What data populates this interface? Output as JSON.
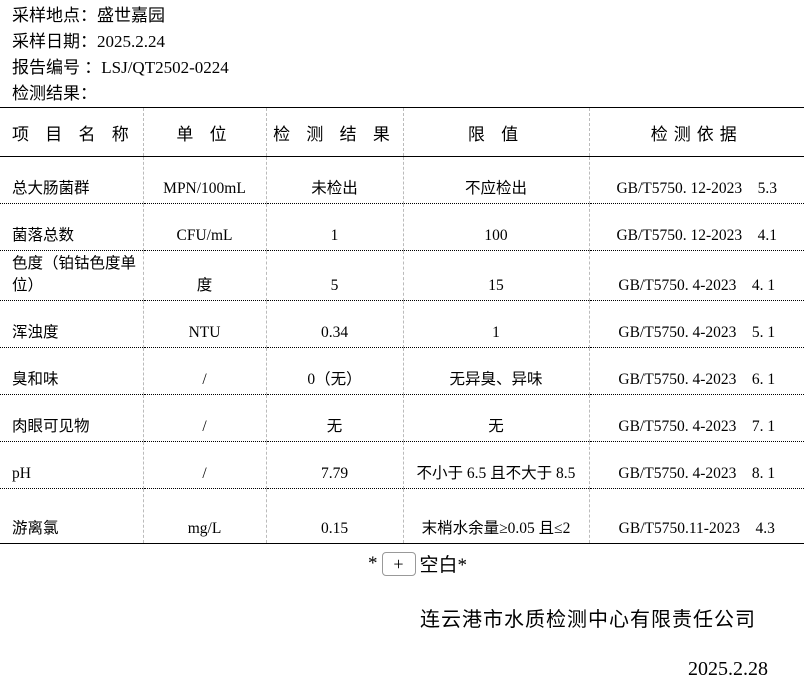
{
  "header": {
    "site": "采样地点：盛世嘉园",
    "date": "采样日期：2025.2.24",
    "report_no": "报告编号 ：LSJ/QT2502-0224",
    "results": "检测结果："
  },
  "table": {
    "columns": [
      "项 目 名 称",
      "单 位",
      "检 测 结 果",
      "限 值",
      "检测依据"
    ],
    "rows": [
      [
        "总大肠菌群",
        "MPN/100mL",
        "未检出",
        "不应检出",
        "GB/T5750. 12-2023    5.3"
      ],
      [
        "菌落总数",
        "CFU/mL",
        "1",
        "100",
        "GB/T5750. 12-2023    4.1"
      ],
      [
        "色度（铂钴色度单位）",
        "度",
        "5",
        "15",
        "GB/T5750. 4-2023    4. 1"
      ],
      [
        "浑浊度",
        "NTU",
        "0.34",
        "1",
        "GB/T5750. 4-2023    5. 1"
      ],
      [
        "臭和味",
        "/",
        "0（无）",
        "无异臭、异味",
        "GB/T5750. 4-2023    6. 1"
      ],
      [
        "肉眼可见物",
        "/",
        "无",
        "无",
        "GB/T5750. 4-2023    7. 1"
      ],
      [
        "pH",
        "/",
        "7.79",
        "不小于 6.5 且不大于 8.5",
        "GB/T5750. 4-2023    8. 1"
      ],
      [
        "游离氯",
        "mg/L",
        "0.15",
        "末梢水余量≥0.05 且≤2",
        "GB/T5750.11-2023    4.3"
      ]
    ]
  },
  "footer": {
    "blank_prefix": "*",
    "add_button": "+",
    "blank_text": "空白*",
    "company": "连云港市水质检测中心有限责任公司",
    "date": "2025.2.28"
  }
}
